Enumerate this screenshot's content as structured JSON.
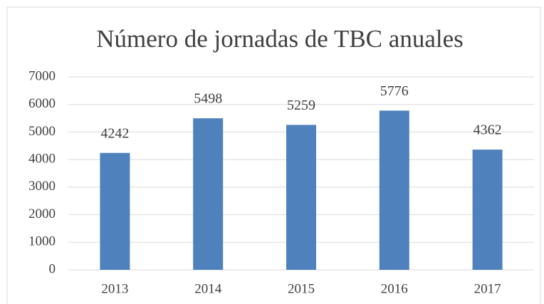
{
  "chart_data": {
    "type": "bar",
    "title": "Número de jornadas de TBC anuales",
    "categories": [
      "2013",
      "2014",
      "2015",
      "2016",
      "2017"
    ],
    "values": [
      4242,
      5498,
      5259,
      5776,
      4362
    ],
    "color": "#4f81bd",
    "ylim": [
      0,
      7000
    ],
    "yticks": [
      0,
      1000,
      2000,
      3000,
      4000,
      5000,
      6000,
      7000
    ],
    "grid": true
  }
}
